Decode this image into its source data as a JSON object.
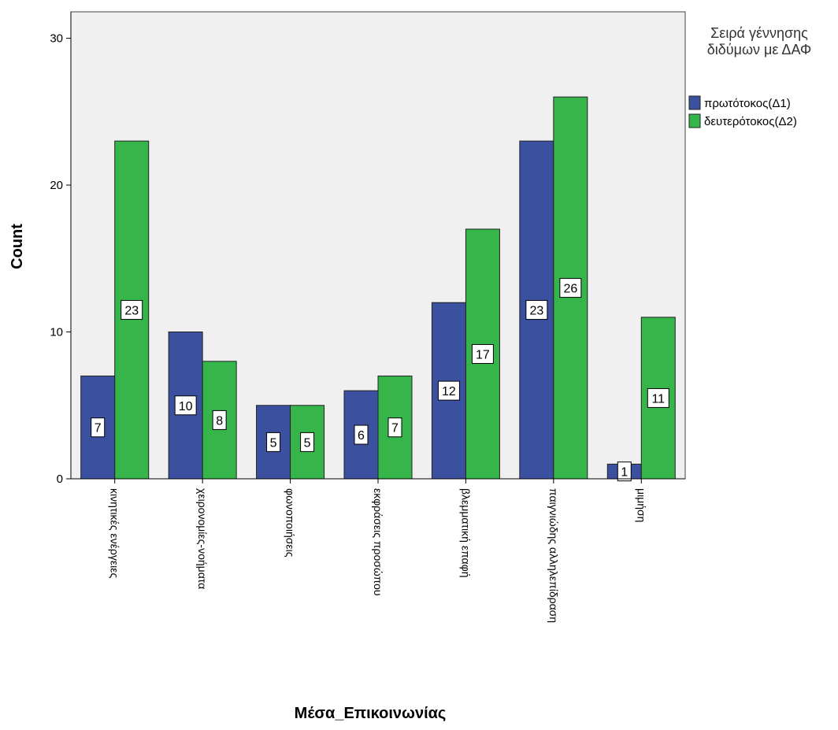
{
  "chart_data": {
    "type": "bar",
    "xlabel": "Μέσα_Επικοινωνίας",
    "ylabel": "Count",
    "ylim": [
      0,
      30
    ],
    "yticks": [
      0,
      10,
      20,
      30
    ],
    "grid": false,
    "legend_position": "top-right",
    "legend_title_lines": [
      "Σειρά γέννησης",
      "διδύμων με ΔΑΦ"
    ],
    "categories": [
      "κινητικές ενέργειες",
      "χειρονομίες-νοήματα",
      "φωνοποιήσεις",
      "εκφράσεις προσώπου",
      "βλεμματική επαφή",
      "παιγνιώδης αλληλεπίδραση",
      "μιμήση"
    ],
    "series": [
      {
        "name": "πρωτότοκος(Δ1)",
        "color": "#3c50a0",
        "values": [
          7,
          10,
          5,
          6,
          12,
          23,
          1
        ]
      },
      {
        "name": "δευτερότοκος(Δ2)",
        "color": "#35b54a",
        "values": [
          23,
          8,
          5,
          7,
          17,
          26,
          11
        ]
      }
    ],
    "plot_background": "#f0f0f0"
  }
}
